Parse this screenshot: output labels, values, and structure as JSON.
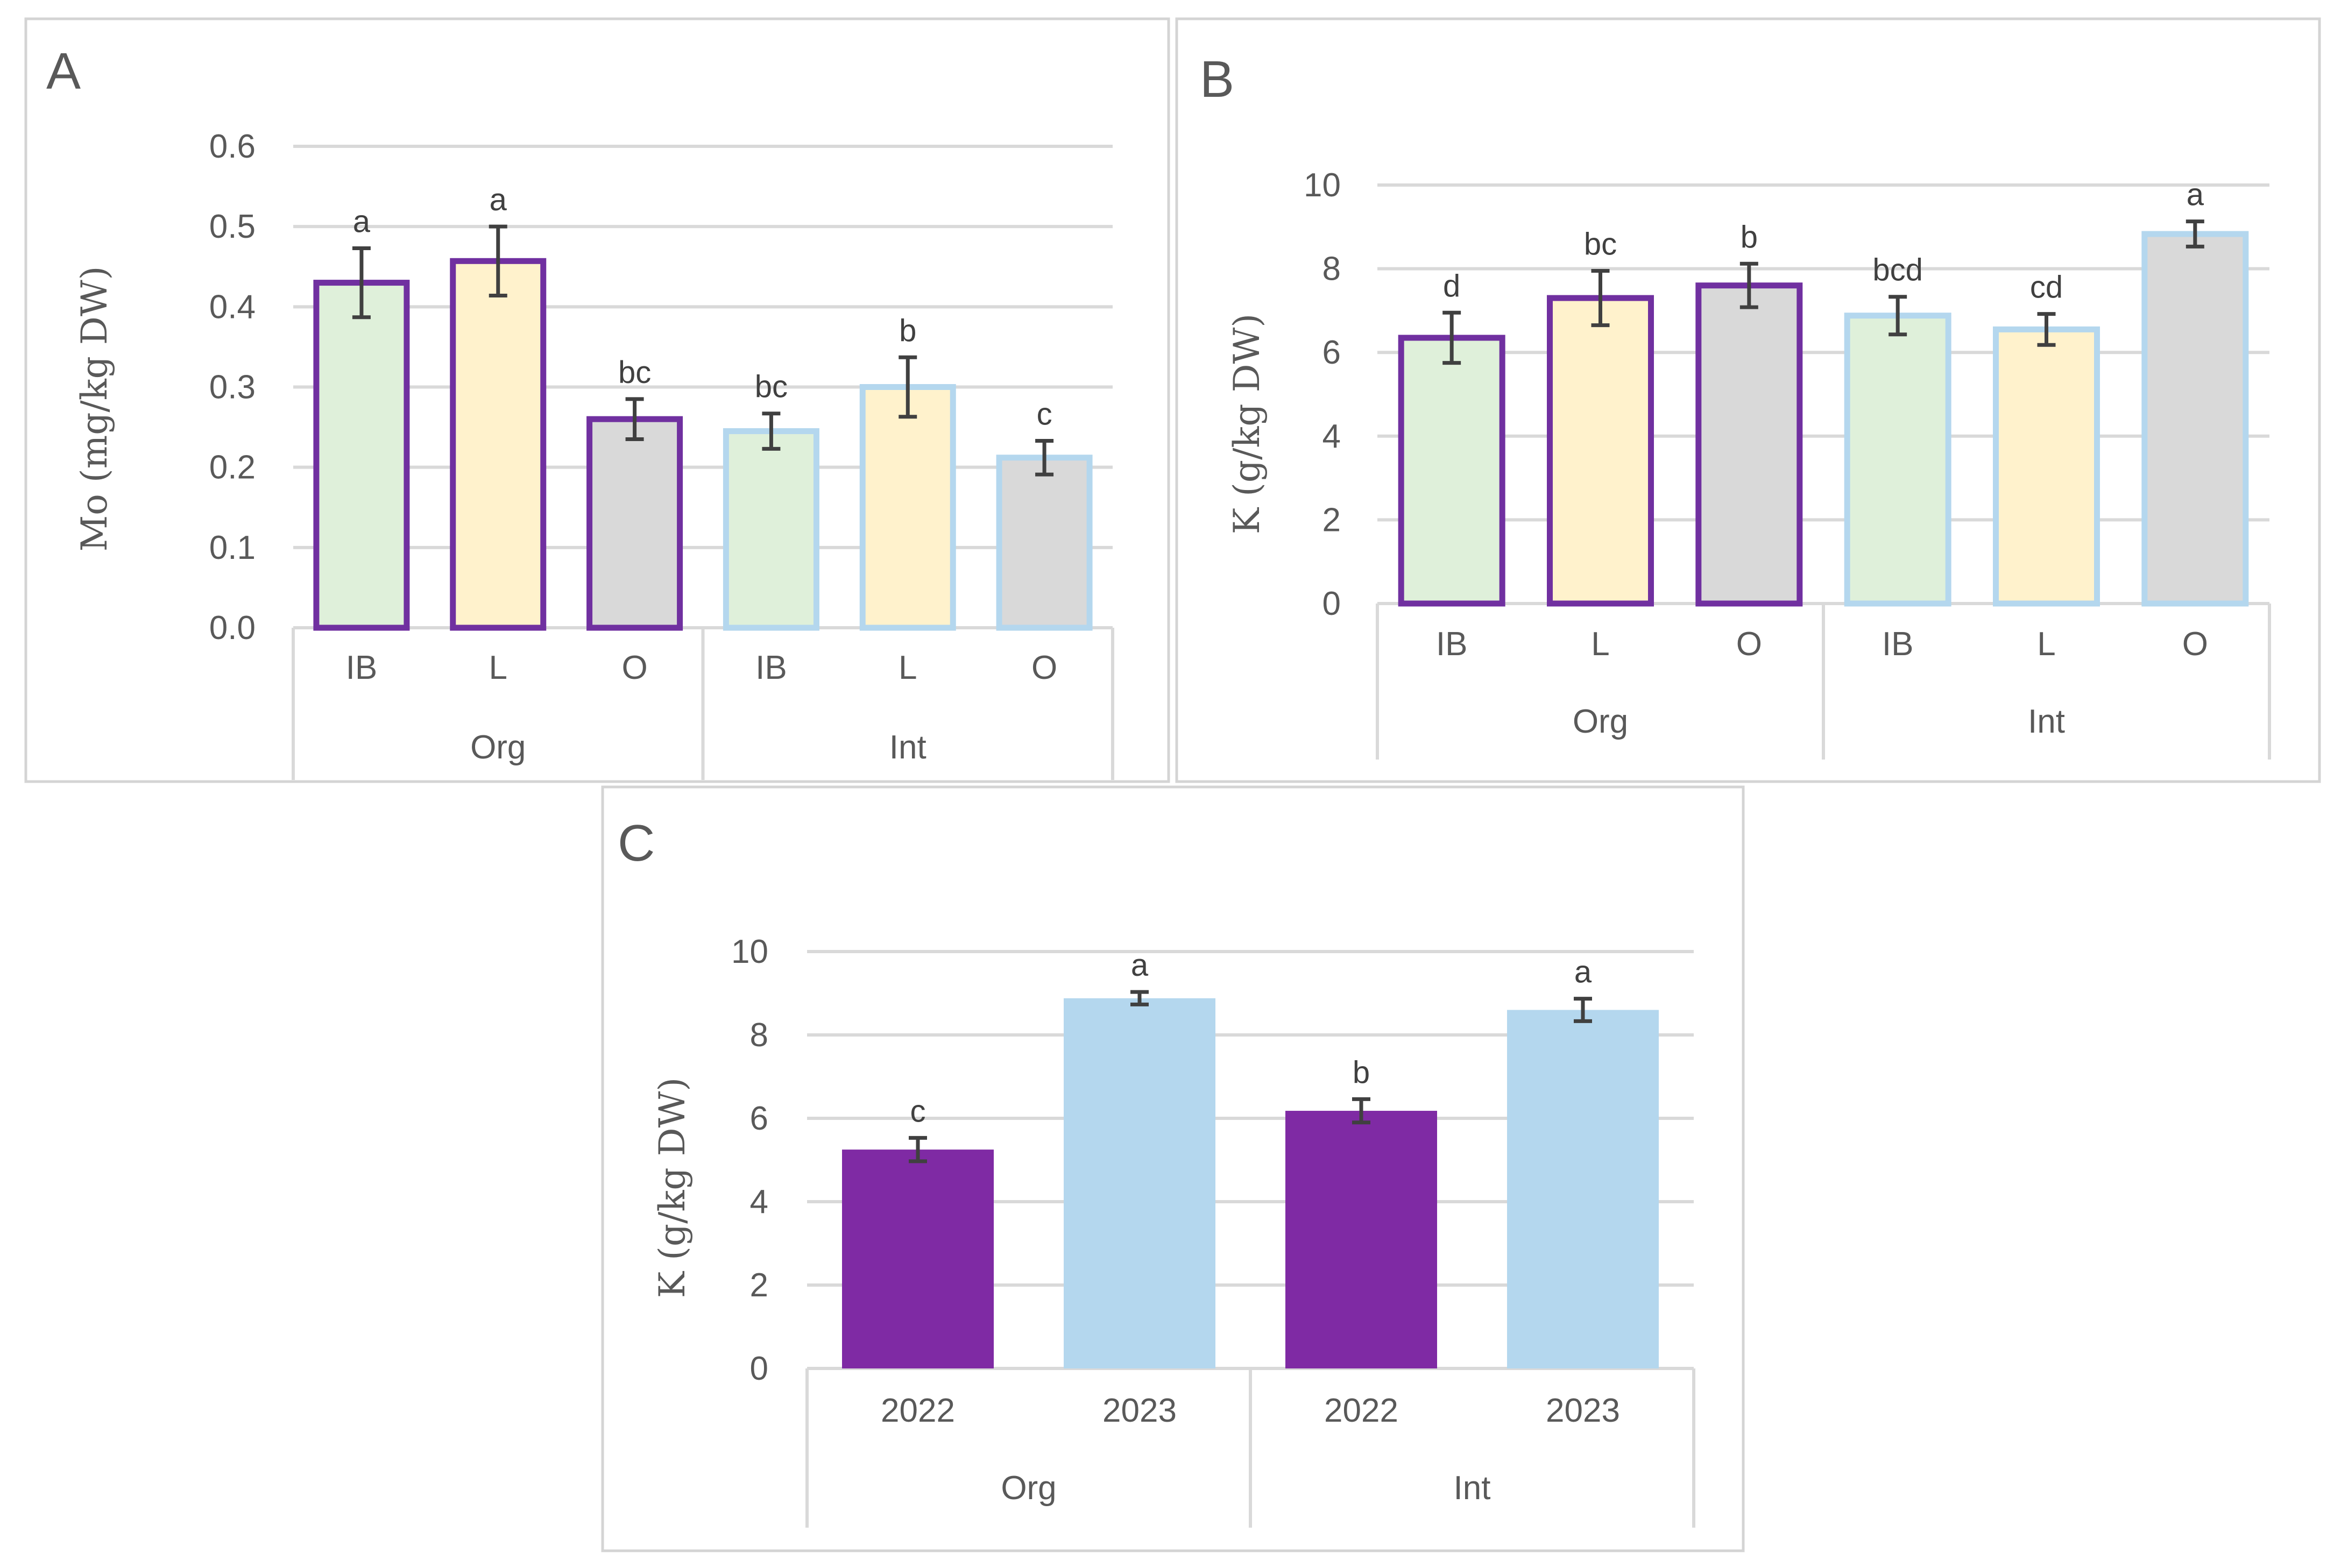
{
  "colors": {
    "org_border": "#7030a0",
    "int_border": "#b4d7ee",
    "fill_IB": "#dff0da",
    "fill_L": "#fff2cc",
    "fill_O": "#d9d9d9",
    "solid_2022": "#7f2aa4",
    "solid_2023": "#b4d7ee",
    "error_bar": "#404040",
    "grid": "#d9d9d9",
    "text": "#595959"
  },
  "chart_data": [
    {
      "panel": "A",
      "type": "bar",
      "ylabel": "Mo (mg/kg DW)",
      "ylim": [
        0,
        0.6
      ],
      "yticks": [
        "0.0",
        "0.1",
        "0.2",
        "0.3",
        "0.4",
        "0.5",
        "0.6"
      ],
      "ytick_values": [
        0,
        0.1,
        0.2,
        0.3,
        0.4,
        0.5,
        0.6
      ],
      "groups": [
        {
          "name": "Org",
          "categories": [
            "IB",
            "L",
            "O"
          ]
        },
        {
          "name": "Int",
          "categories": [
            "IB",
            "L",
            "O"
          ]
        }
      ],
      "bars": [
        {
          "group": "Org",
          "category": "IB",
          "value": 0.43,
          "error": 0.043,
          "letter": "a"
        },
        {
          "group": "Org",
          "category": "L",
          "value": 0.457,
          "error": 0.043,
          "letter": "a"
        },
        {
          "group": "Org",
          "category": "O",
          "value": 0.26,
          "error": 0.025,
          "letter": "bc"
        },
        {
          "group": "Int",
          "category": "IB",
          "value": 0.245,
          "error": 0.022,
          "letter": "bc"
        },
        {
          "group": "Int",
          "category": "L",
          "value": 0.3,
          "error": 0.037,
          "letter": "b"
        },
        {
          "group": "Int",
          "category": "O",
          "value": 0.212,
          "error": 0.021,
          "letter": "c"
        }
      ]
    },
    {
      "panel": "B",
      "type": "bar",
      "ylabel": "K (g/kg DW)",
      "ylim": [
        0,
        10
      ],
      "yticks": [
        "0",
        "2",
        "4",
        "6",
        "8",
        "10"
      ],
      "ytick_values": [
        0,
        2,
        4,
        6,
        8,
        10
      ],
      "groups": [
        {
          "name": "Org",
          "categories": [
            "IB",
            "L",
            "O"
          ]
        },
        {
          "name": "Int",
          "categories": [
            "IB",
            "L",
            "O"
          ]
        }
      ],
      "bars": [
        {
          "group": "Org",
          "category": "IB",
          "value": 6.35,
          "error": 0.6,
          "letter": "d"
        },
        {
          "group": "Org",
          "category": "L",
          "value": 7.3,
          "error": 0.65,
          "letter": "bc"
        },
        {
          "group": "Org",
          "category": "O",
          "value": 7.6,
          "error": 0.52,
          "letter": "b"
        },
        {
          "group": "Int",
          "category": "IB",
          "value": 6.88,
          "error": 0.45,
          "letter": "bcd"
        },
        {
          "group": "Int",
          "category": "L",
          "value": 6.55,
          "error": 0.37,
          "letter": "cd"
        },
        {
          "group": "Int",
          "category": "O",
          "value": 8.83,
          "error": 0.3,
          "letter": "a"
        }
      ]
    },
    {
      "panel": "C",
      "type": "bar",
      "ylabel": "K (g/kg DW)",
      "ylim": [
        0,
        10
      ],
      "yticks": [
        "0",
        "2",
        "4",
        "6",
        "8",
        "10"
      ],
      "ytick_values": [
        0,
        2,
        4,
        6,
        8,
        10
      ],
      "groups": [
        {
          "name": "Org",
          "categories": [
            "2022",
            "2023"
          ]
        },
        {
          "name": "Int",
          "categories": [
            "2022",
            "2023"
          ]
        }
      ],
      "bars": [
        {
          "group": "Org",
          "category": "2022",
          "value": 5.25,
          "error": 0.28,
          "letter": "c"
        },
        {
          "group": "Org",
          "category": "2023",
          "value": 8.88,
          "error": 0.15,
          "letter": "a"
        },
        {
          "group": "Int",
          "category": "2022",
          "value": 6.18,
          "error": 0.28,
          "letter": "b"
        },
        {
          "group": "Int",
          "category": "2023",
          "value": 8.6,
          "error": 0.27,
          "letter": "a"
        }
      ]
    }
  ]
}
